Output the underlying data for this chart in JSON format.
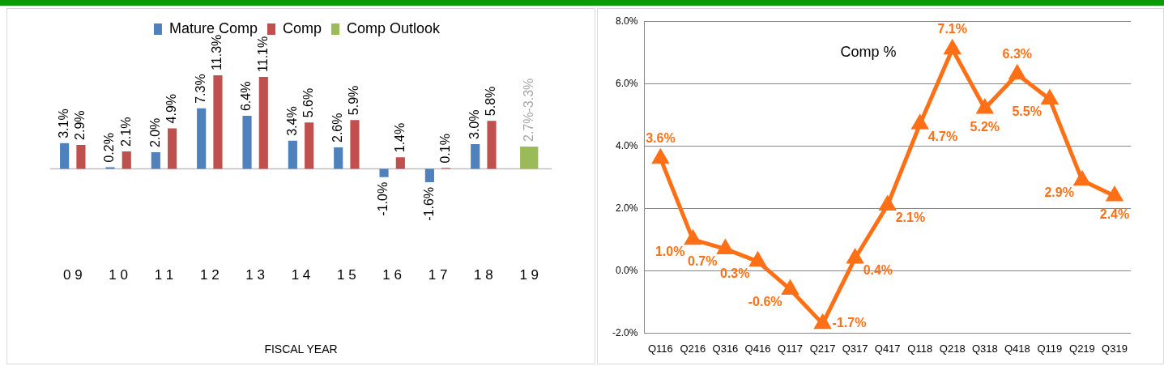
{
  "chart_data": [
    {
      "type": "bar",
      "xlabel": "FISCAL YEAR",
      "legend": "top",
      "tick_labels": "x",
      "grid": false,
      "categories": [
        "0 9",
        "1 0",
        "1 1",
        "1 2",
        "1 3",
        "1 4",
        "1 5",
        "1 6",
        "1 7",
        "1 8",
        "1 9"
      ],
      "series": [
        {
          "name": "Mature Comp",
          "color": "#4f81bd",
          "values": [
            3.1,
            0.2,
            2.0,
            7.3,
            6.4,
            3.4,
            2.6,
            -1.0,
            -1.6,
            3.0,
            null
          ],
          "value_labels": [
            "3.1%",
            "0.2%",
            "2.0%",
            "7.3%",
            "6.4%",
            "3.4%",
            "2.6%",
            "-1.0%",
            "-1.6%",
            "3.0%",
            null
          ]
        },
        {
          "name": "Comp",
          "color": "#c0504d",
          "values": [
            2.9,
            2.1,
            4.9,
            11.3,
            11.1,
            5.6,
            5.9,
            1.4,
            0.1,
            5.8,
            null
          ],
          "value_labels": [
            "2.9%",
            "2.1%",
            "4.9%",
            "11.3%",
            "11.1%",
            "5.6%",
            "5.9%",
            "1.4%",
            "0.1%",
            "5.8%",
            null
          ]
        },
        {
          "name": "Comp Outlook",
          "color": "#9bbb59",
          "values": [
            null,
            null,
            null,
            null,
            null,
            null,
            null,
            null,
            null,
            null,
            2.7
          ],
          "value_labels": [
            null,
            null,
            null,
            null,
            null,
            null,
            null,
            null,
            null,
            null,
            "2.7%-3.3%"
          ]
        }
      ]
    },
    {
      "type": "line",
      "title": "Comp %",
      "legend": false,
      "grid": "y",
      "marker": "triangle",
      "line_style": "solid",
      "categories": [
        "Q116",
        "Q216",
        "Q316",
        "Q416",
        "Q117",
        "Q217",
        "Q317",
        "Q417",
        "Q118",
        "Q218",
        "Q318",
        "Q418",
        "Q119",
        "Q219",
        "Q319"
      ],
      "ylim": [
        -2,
        8
      ],
      "yticks": [
        {
          "value": -2,
          "label": "-2.0%"
        },
        {
          "value": 0,
          "label": "0.0%"
        },
        {
          "value": 2,
          "label": "2.0%"
        },
        {
          "value": 4,
          "label": "4.0%"
        },
        {
          "value": 6,
          "label": "6.0%"
        },
        {
          "value": 8,
          "label": "8.0%"
        }
      ],
      "series": [
        {
          "color": "#ff7016",
          "values": [
            3.6,
            1.0,
            0.7,
            0.3,
            -0.6,
            -1.7,
            0.4,
            2.1,
            4.7,
            7.1,
            5.2,
            6.3,
            5.5,
            2.9,
            2.4
          ],
          "value_labels": [
            "3.6%",
            "1.0%",
            "0.7%",
            "0.3%",
            "-0.6%",
            "-1.7%",
            "0.4%",
            "2.1%",
            "4.7%",
            "7.1%",
            "5.2%",
            "6.3%",
            "5.5%",
            "2.9%",
            "2.4%"
          ]
        }
      ]
    }
  ]
}
